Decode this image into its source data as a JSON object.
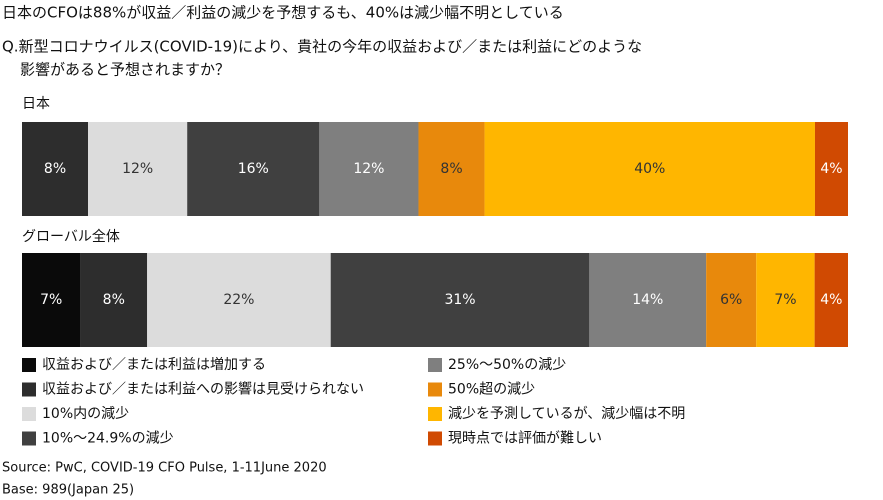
{
  "chart_data": {
    "type": "stacked-bar-horizontal",
    "title": "日本のCFOは88%が収益／利益の減少を予想するも、40%は減少幅不明としている",
    "subtitle": [
      "Q.新型コロナウイルス(COVID-19)により、貴社の今年の収益および／または利益にどのような",
      "影響があると予想されますか？"
    ],
    "categories": [
      "日本",
      "グローバル全体"
    ],
    "series": [
      {
        "name": "収益および／または利益は増加する",
        "color": "#0a0a0a",
        "values": [
          0,
          7
        ],
        "value_labels": [
          null,
          "7%"
        ]
      },
      {
        "name": "収益および／または利益への影響は見受けられない",
        "color": "#2d2d2d",
        "values": [
          8,
          8
        ],
        "value_labels": [
          "8%",
          "8%"
        ]
      },
      {
        "name": "10%内の減少",
        "color": "#dcdcdc",
        "values": [
          12,
          22
        ],
        "value_labels": [
          "12%",
          "22%"
        ]
      },
      {
        "name": "10%〜24.9%の減少",
        "color": "#404040",
        "values": [
          16,
          31
        ],
        "value_labels": [
          "16%",
          "31%"
        ]
      },
      {
        "name": "25%〜50%の減少",
        "color": "#7f7f7f",
        "values": [
          12,
          14
        ],
        "value_labels": [
          "12%",
          "14%"
        ]
      },
      {
        "name": "50%超の減少",
        "color": "#e8890c",
        "values": [
          8,
          6
        ],
        "value_labels": [
          "8%",
          "6%"
        ]
      },
      {
        "name": "減少を予測しているが、減少幅は不明",
        "color": "#ffb600",
        "values": [
          40,
          7
        ],
        "value_labels": [
          "40%",
          "7%"
        ]
      },
      {
        "name": "現時点では評価が難しい",
        "color": "#d04a02",
        "values": [
          4,
          4
        ],
        "value_labels": [
          "4%",
          "4%"
        ]
      }
    ],
    "notes": [
      "Source: PwC, COVID-19 CFO Pulse, 1-11June 2020",
      "Base: 989(Japan 25)"
    ]
  }
}
